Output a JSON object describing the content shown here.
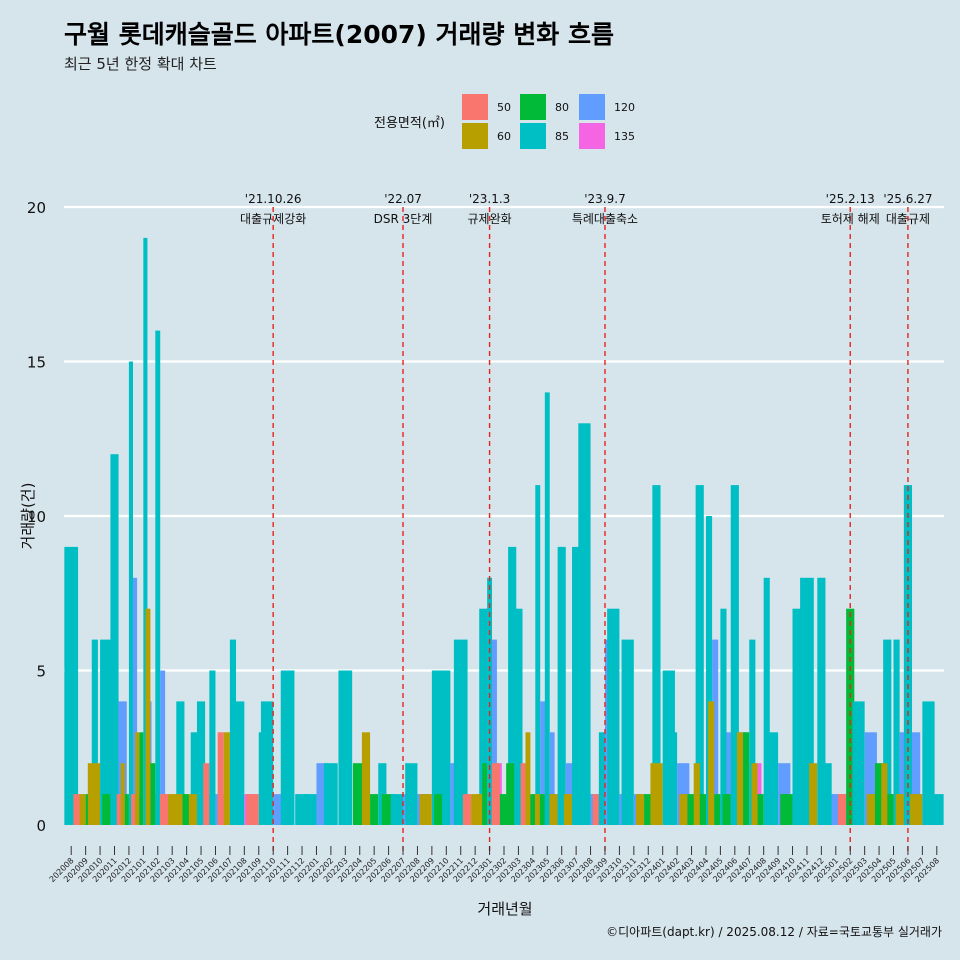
{
  "chart_data": {
    "type": "bar",
    "title": "구월 롯데캐슬골드 아파트(2007) 거래량 변화 흐름",
    "subtitle": "최근 5년 한정 확대 차트",
    "xlabel": "거래년월",
    "ylabel": "거래량(건)",
    "caption": "©디아파트(dapt.kr) / 2025.08.12 / 자료=국토교통부 실거래가",
    "ylim": [
      0,
      20
    ],
    "yticks": [
      0,
      5,
      10,
      15,
      20
    ],
    "ytick_labels": [
      "0",
      "5",
      "10",
      "15",
      "20"
    ],
    "legend": {
      "title": "전용면적(㎡)",
      "position": "top",
      "items": [
        {
          "label": "50",
          "color": "#f8766d"
        },
        {
          "label": "60",
          "color": "#b79f00"
        },
        {
          "label": "80",
          "color": "#00ba38"
        },
        {
          "label": "85",
          "color": "#00bfc4"
        },
        {
          "label": "120",
          "color": "#619cff"
        },
        {
          "label": "135",
          "color": "#f564e3"
        }
      ]
    },
    "categories": [
      "202008",
      "202009",
      "202010",
      "202011",
      "202012",
      "202101",
      "202102",
      "202103",
      "202104",
      "202105",
      "202106",
      "202107",
      "202108",
      "202109",
      "202110",
      "202111",
      "202112",
      "202201",
      "202202",
      "202203",
      "202204",
      "202205",
      "202206",
      "202207",
      "202208",
      "202209",
      "202210",
      "202211",
      "202212",
      "202301",
      "202302",
      "202303",
      "202304",
      "202305",
      "202306",
      "202307",
      "202308",
      "202309",
      "202310",
      "202311",
      "202312",
      "202401",
      "202402",
      "202403",
      "202404",
      "202405",
      "202406",
      "202407",
      "202408",
      "202409",
      "202410",
      "202411",
      "202412",
      "202501",
      "202502",
      "202503",
      "202504",
      "202505",
      "202506",
      "202507",
      "202508"
    ],
    "months": [
      {
        "m": "202008",
        "bars": [
          {
            "s": "85",
            "v": 9
          }
        ]
      },
      {
        "m": "202009",
        "bars": [
          {
            "s": "50",
            "v": 1
          },
          {
            "s": "60",
            "v": 1
          },
          {
            "s": "80",
            "v": 1
          },
          {
            "s": "85",
            "v": 6
          }
        ]
      },
      {
        "m": "202010",
        "bars": [
          {
            "s": "60",
            "v": 2
          },
          {
            "s": "85",
            "v": 6
          }
        ]
      },
      {
        "m": "202011",
        "bars": [
          {
            "s": "80",
            "v": 1
          },
          {
            "s": "85",
            "v": 12
          },
          {
            "s": "120",
            "v": 4
          }
        ]
      },
      {
        "m": "202012",
        "bars": [
          {
            "s": "50",
            "v": 1
          },
          {
            "s": "60",
            "v": 2
          },
          {
            "s": "80",
            "v": 1
          },
          {
            "s": "85",
            "v": 15
          },
          {
            "s": "120",
            "v": 8
          },
          {
            "s": "135",
            "v": 1
          }
        ]
      },
      {
        "m": "202101",
        "bars": [
          {
            "s": "50",
            "v": 1
          },
          {
            "s": "60",
            "v": 3
          },
          {
            "s": "80",
            "v": 3
          },
          {
            "s": "85",
            "v": 19
          },
          {
            "s": "120",
            "v": 4
          },
          {
            "s": "135",
            "v": 1
          }
        ]
      },
      {
        "m": "202102",
        "bars": [
          {
            "s": "60",
            "v": 7
          },
          {
            "s": "80",
            "v": 2
          },
          {
            "s": "85",
            "v": 16
          },
          {
            "s": "120",
            "v": 5
          },
          {
            "s": "135",
            "v": 1
          }
        ]
      },
      {
        "m": "202103",
        "bars": [
          {
            "s": "50",
            "v": 1
          },
          {
            "s": "60",
            "v": 1
          },
          {
            "s": "85",
            "v": 4
          }
        ]
      },
      {
        "m": "202104",
        "bars": [
          {
            "s": "60",
            "v": 1
          },
          {
            "s": "80",
            "v": 1
          },
          {
            "s": "85",
            "v": 3
          }
        ]
      },
      {
        "m": "202105",
        "bars": [
          {
            "s": "60",
            "v": 1
          },
          {
            "s": "85",
            "v": 4
          },
          {
            "s": "120",
            "v": 1
          }
        ]
      },
      {
        "m": "202106",
        "bars": [
          {
            "s": "50",
            "v": 2
          },
          {
            "s": "85",
            "v": 5
          },
          {
            "s": "120",
            "v": 1
          },
          {
            "s": "135",
            "v": 1
          }
        ]
      },
      {
        "m": "202107",
        "bars": [
          {
            "s": "50",
            "v": 3
          },
          {
            "s": "60",
            "v": 3
          },
          {
            "s": "85",
            "v": 6
          },
          {
            "s": "120",
            "v": 2
          }
        ]
      },
      {
        "m": "202108",
        "bars": [
          {
            "s": "85",
            "v": 4
          },
          {
            "s": "135",
            "v": 1
          }
        ]
      },
      {
        "m": "202109",
        "bars": [
          {
            "s": "50",
            "v": 1
          },
          {
            "s": "85",
            "v": 3
          }
        ]
      },
      {
        "m": "202110",
        "bars": [
          {
            "s": "85",
            "v": 4
          },
          {
            "s": "120",
            "v": 1
          }
        ]
      },
      {
        "m": "202111",
        "bars": [
          {
            "s": "85",
            "v": 5
          }
        ]
      },
      {
        "m": "202112",
        "bars": [
          {
            "s": "85",
            "v": 1
          }
        ]
      },
      {
        "m": "202201",
        "bars": [
          {
            "s": "85",
            "v": 1
          },
          {
            "s": "120",
            "v": 2
          }
        ]
      },
      {
        "m": "202202",
        "bars": [
          {
            "s": "85",
            "v": 2
          }
        ]
      },
      {
        "m": "202203",
        "bars": [
          {
            "s": "85",
            "v": 5
          }
        ]
      },
      {
        "m": "202204",
        "bars": [
          {
            "s": "80",
            "v": 2
          }
        ]
      },
      {
        "m": "202205",
        "bars": [
          {
            "s": "60",
            "v": 3
          },
          {
            "s": "80",
            "v": 1
          },
          {
            "s": "85",
            "v": 2
          }
        ]
      },
      {
        "m": "202206",
        "bars": [
          {
            "s": "80",
            "v": 1
          }
        ]
      },
      {
        "m": "202207",
        "bars": [
          {
            "s": "85",
            "v": 1
          },
          {
            "s": "120",
            "v": 1
          }
        ]
      },
      {
        "m": "202208",
        "bars": [
          {
            "s": "85",
            "v": 2
          },
          {
            "s": "120",
            "v": 1
          }
        ]
      },
      {
        "m": "202209",
        "bars": [
          {
            "s": "60",
            "v": 1
          },
          {
            "s": "85",
            "v": 5
          }
        ]
      },
      {
        "m": "202210",
        "bars": [
          {
            "s": "80",
            "v": 1
          },
          {
            "s": "85",
            "v": 5
          },
          {
            "s": "120",
            "v": 2
          }
        ]
      },
      {
        "m": "202211",
        "bars": [
          {
            "s": "85",
            "v": 6
          }
        ]
      },
      {
        "m": "202212",
        "bars": [
          {
            "s": "50",
            "v": 1
          },
          {
            "s": "60",
            "v": 1
          },
          {
            "s": "85",
            "v": 7
          }
        ]
      },
      {
        "m": "202301",
        "bars": [
          {
            "s": "60",
            "v": 1
          },
          {
            "s": "80",
            "v": 2
          },
          {
            "s": "85",
            "v": 8
          },
          {
            "s": "120",
            "v": 6
          },
          {
            "s": "135",
            "v": 2
          }
        ]
      },
      {
        "m": "202302",
        "bars": [
          {
            "s": "50",
            "v": 2
          },
          {
            "s": "80",
            "v": 1
          },
          {
            "s": "85",
            "v": 9
          }
        ]
      },
      {
        "m": "202303",
        "bars": [
          {
            "s": "80",
            "v": 2
          },
          {
            "s": "85",
            "v": 7
          },
          {
            "s": "135",
            "v": 1
          }
        ]
      },
      {
        "m": "202304",
        "bars": [
          {
            "s": "50",
            "v": 2
          },
          {
            "s": "60",
            "v": 3
          },
          {
            "s": "80",
            "v": 1
          },
          {
            "s": "85",
            "v": 11
          },
          {
            "s": "120",
            "v": 4
          }
        ]
      },
      {
        "m": "202305",
        "bars": [
          {
            "s": "60",
            "v": 1
          },
          {
            "s": "80",
            "v": 1
          },
          {
            "s": "85",
            "v": 14
          },
          {
            "s": "120",
            "v": 3
          },
          {
            "s": "135",
            "v": 1
          }
        ]
      },
      {
        "m": "202306",
        "bars": [
          {
            "s": "60",
            "v": 1
          },
          {
            "s": "85",
            "v": 9
          },
          {
            "s": "120",
            "v": 2
          }
        ]
      },
      {
        "m": "202307",
        "bars": [
          {
            "s": "60",
            "v": 1
          },
          {
            "s": "85",
            "v": 9
          },
          {
            "s": "120",
            "v": 1
          }
        ]
      },
      {
        "m": "202308",
        "bars": [
          {
            "s": "85",
            "v": 13
          },
          {
            "s": "120",
            "v": 1
          }
        ]
      },
      {
        "m": "202309",
        "bars": [
          {
            "s": "50",
            "v": 1
          },
          {
            "s": "85",
            "v": 3
          },
          {
            "s": "120",
            "v": 6
          },
          {
            "s": "135",
            "v": 1
          }
        ]
      },
      {
        "m": "202310",
        "bars": [
          {
            "s": "85",
            "v": 7
          },
          {
            "s": "120",
            "v": 1
          }
        ]
      },
      {
        "m": "202311",
        "bars": [
          {
            "s": "85",
            "v": 6
          },
          {
            "s": "120",
            "v": 1
          }
        ]
      },
      {
        "m": "202312",
        "bars": [
          {
            "s": "60",
            "v": 1
          },
          {
            "s": "80",
            "v": 1
          },
          {
            "s": "85",
            "v": 11
          }
        ]
      },
      {
        "m": "202401",
        "bars": [
          {
            "s": "60",
            "v": 2
          },
          {
            "s": "85",
            "v": 5
          }
        ]
      },
      {
        "m": "202402",
        "bars": [
          {
            "s": "85",
            "v": 3
          },
          {
            "s": "120",
            "v": 2
          }
        ]
      },
      {
        "m": "202403",
        "bars": [
          {
            "s": "60",
            "v": 1
          },
          {
            "s": "80",
            "v": 1
          },
          {
            "s": "85",
            "v": 11
          }
        ]
      },
      {
        "m": "202404",
        "bars": [
          {
            "s": "60",
            "v": 2
          },
          {
            "s": "80",
            "v": 1
          },
          {
            "s": "85",
            "v": 10
          },
          {
            "s": "120",
            "v": 6
          }
        ]
      },
      {
        "m": "202405",
        "bars": [
          {
            "s": "60",
            "v": 4
          },
          {
            "s": "80",
            "v": 1
          },
          {
            "s": "85",
            "v": 7
          },
          {
            "s": "120",
            "v": 3
          }
        ]
      },
      {
        "m": "202406",
        "bars": [
          {
            "s": "80",
            "v": 1
          },
          {
            "s": "85",
            "v": 11
          },
          {
            "s": "120",
            "v": 3
          }
        ]
      },
      {
        "m": "202407",
        "bars": [
          {
            "s": "60",
            "v": 3
          },
          {
            "s": "80",
            "v": 3
          },
          {
            "s": "85",
            "v": 6
          },
          {
            "s": "135",
            "v": 2
          }
        ]
      },
      {
        "m": "202408",
        "bars": [
          {
            "s": "60",
            "v": 2
          },
          {
            "s": "80",
            "v": 1
          },
          {
            "s": "85",
            "v": 8
          },
          {
            "s": "120",
            "v": 2
          }
        ]
      },
      {
        "m": "202409",
        "bars": [
          {
            "s": "85",
            "v": 3
          },
          {
            "s": "120",
            "v": 2
          }
        ]
      },
      {
        "m": "202410",
        "bars": [
          {
            "s": "80",
            "v": 1
          },
          {
            "s": "85",
            "v": 7
          }
        ]
      },
      {
        "m": "202411",
        "bars": [
          {
            "s": "85",
            "v": 8
          }
        ]
      },
      {
        "m": "202412",
        "bars": [
          {
            "s": "60",
            "v": 2
          },
          {
            "s": "85",
            "v": 8
          },
          {
            "s": "120",
            "v": 1
          }
        ]
      },
      {
        "m": "202501",
        "bars": [
          {
            "s": "85",
            "v": 2
          },
          {
            "s": "120",
            "v": 1
          },
          {
            "s": "135",
            "v": 1
          }
        ]
      },
      {
        "m": "202502",
        "bars": [
          {
            "s": "50",
            "v": 1
          },
          {
            "s": "80",
            "v": 7
          },
          {
            "s": "120",
            "v": 2
          }
        ]
      },
      {
        "m": "202503",
        "bars": [
          {
            "s": "85",
            "v": 4
          },
          {
            "s": "120",
            "v": 3
          }
        ]
      },
      {
        "m": "202504",
        "bars": [
          {
            "s": "60",
            "v": 1
          },
          {
            "s": "80",
            "v": 2
          },
          {
            "s": "85",
            "v": 6
          }
        ]
      },
      {
        "m": "202505",
        "bars": [
          {
            "s": "60",
            "v": 2
          },
          {
            "s": "80",
            "v": 1
          },
          {
            "s": "85",
            "v": 6
          },
          {
            "s": "120",
            "v": 3
          }
        ]
      },
      {
        "m": "202506",
        "bars": [
          {
            "s": "60",
            "v": 1
          },
          {
            "s": "85",
            "v": 11
          },
          {
            "s": "120",
            "v": 3
          }
        ]
      },
      {
        "m": "202507",
        "bars": [
          {
            "s": "60",
            "v": 1
          },
          {
            "s": "85",
            "v": 4
          }
        ]
      },
      {
        "m": "202508",
        "bars": [
          {
            "s": "85",
            "v": 1
          }
        ]
      }
    ],
    "events": [
      {
        "at": "202110",
        "date": "'21.10.26",
        "label": "대출규제강화"
      },
      {
        "at": "202207",
        "date": "'22.07",
        "label": "DSR 3단계"
      },
      {
        "at": "202301",
        "date": "'23.1.3",
        "label": "규제완화"
      },
      {
        "at": "202309",
        "date": "'23.9.7",
        "label": "특례대출축소"
      },
      {
        "at": "202502",
        "date": "'25.2.13",
        "label": "토허제 해제"
      },
      {
        "at": "202506",
        "date": "'25.6.27",
        "label": "대출규제"
      }
    ]
  }
}
